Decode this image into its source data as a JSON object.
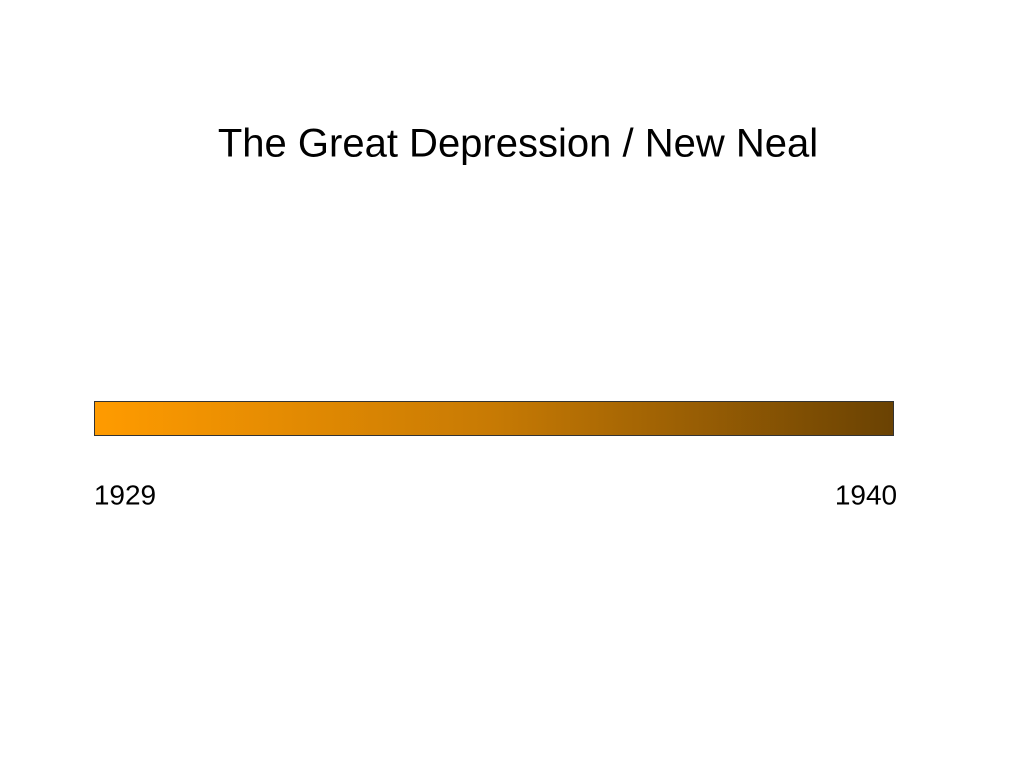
{
  "title": "The Great Depression / New Neal",
  "timeline": {
    "start_label": "1929",
    "end_label": "1940"
  }
}
